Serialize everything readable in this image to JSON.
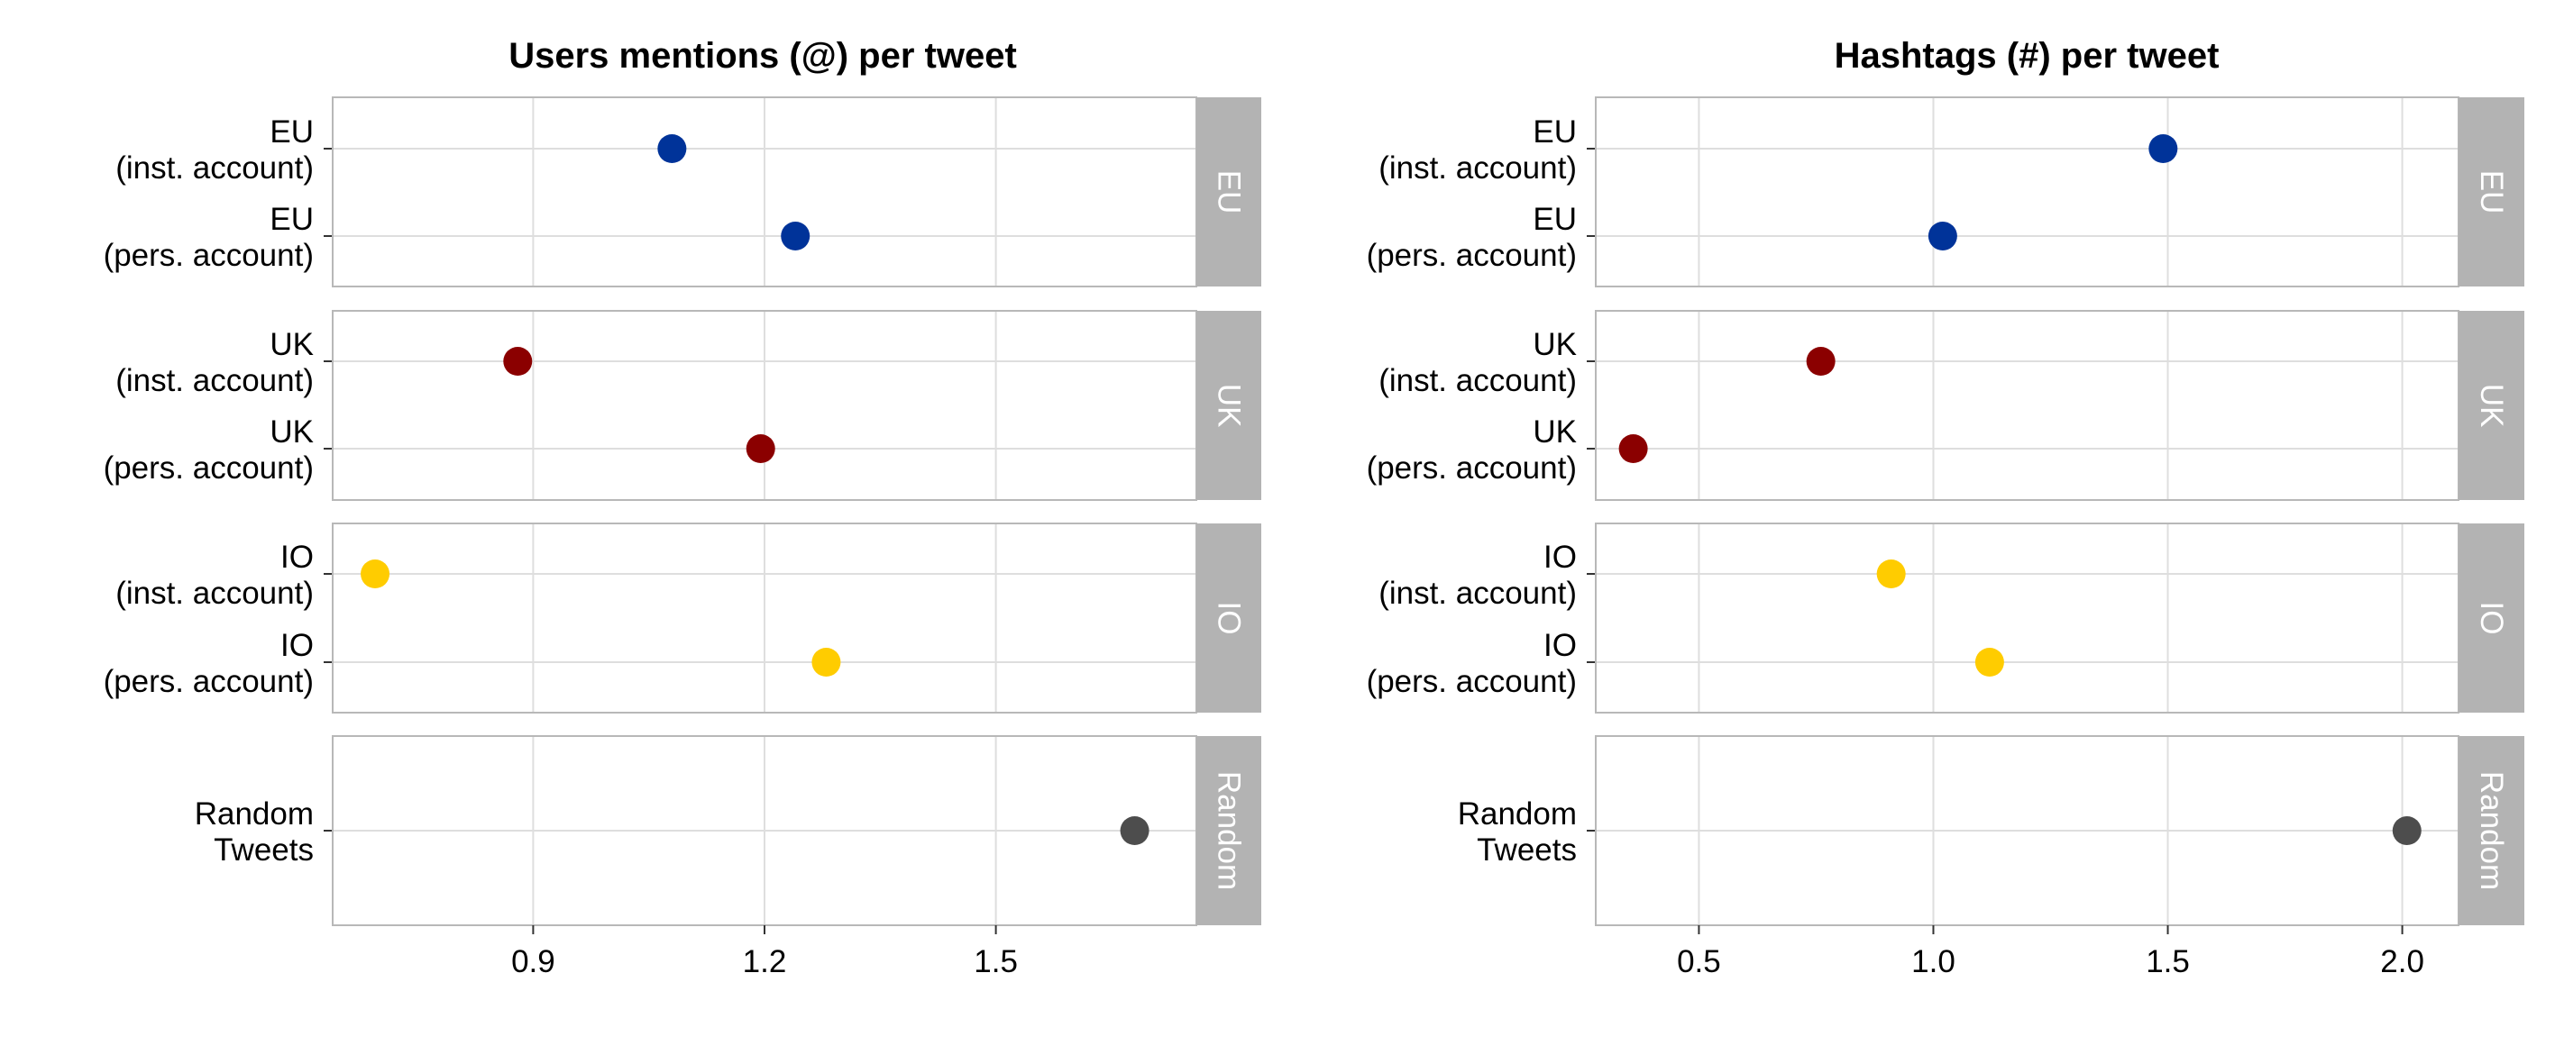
{
  "chart_data": [
    {
      "type": "scatter",
      "title": "Users mentions (@) per tweet",
      "xlim": [
        0.64,
        1.76
      ],
      "xticks": [
        0.9,
        1.2,
        1.5
      ],
      "xtick_labels": [
        "0.9",
        "1.2",
        "1.5"
      ],
      "grid": true,
      "facets": [
        {
          "strip": "EU",
          "rows": [
            {
              "label": [
                "EU",
                "(inst. account)"
              ],
              "value": 1.08,
              "color": "#003399"
            },
            {
              "label": [
                "EU",
                "(pers. account)"
              ],
              "value": 1.24,
              "color": "#003399"
            }
          ]
        },
        {
          "strip": "UK",
          "rows": [
            {
              "label": [
                "UK",
                "(inst. account)"
              ],
              "value": 0.88,
              "color": "#8B0000"
            },
            {
              "label": [
                "UK",
                "(pers. account)"
              ],
              "value": 1.195,
              "color": "#8B0000"
            }
          ]
        },
        {
          "strip": "IO",
          "rows": [
            {
              "label": [
                "IO",
                "(inst. account)"
              ],
              "value": 0.695,
              "color": "#FFCC00"
            },
            {
              "label": [
                "IO",
                "(pers. account)"
              ],
              "value": 1.28,
              "color": "#FFCC00"
            }
          ]
        },
        {
          "strip": "Random",
          "rows": [
            {
              "label": [
                "Random",
                "Tweets"
              ],
              "value": 1.68,
              "color": "#4D4D4D"
            }
          ]
        }
      ]
    },
    {
      "type": "scatter",
      "title": "Hashtags (#) per tweet",
      "xlim": [
        0.28,
        2.12
      ],
      "xticks": [
        0.5,
        1.0,
        1.5,
        2.0
      ],
      "xtick_labels": [
        "0.5",
        "1.0",
        "1.5",
        "2.0"
      ],
      "grid": true,
      "facets": [
        {
          "strip": "EU",
          "rows": [
            {
              "label": [
                "EU",
                "(inst. account)"
              ],
              "value": 1.49,
              "color": "#003399"
            },
            {
              "label": [
                "EU",
                "(pers. account)"
              ],
              "value": 1.02,
              "color": "#003399"
            }
          ]
        },
        {
          "strip": "UK",
          "rows": [
            {
              "label": [
                "UK",
                "(inst. account)"
              ],
              "value": 0.76,
              "color": "#8B0000"
            },
            {
              "label": [
                "UK",
                "(pers. account)"
              ],
              "value": 0.36,
              "color": "#8B0000"
            }
          ]
        },
        {
          "strip": "IO",
          "rows": [
            {
              "label": [
                "IO",
                "(inst. account)"
              ],
              "value": 0.91,
              "color": "#FFCC00"
            },
            {
              "label": [
                "IO",
                "(pers. account)"
              ],
              "value": 1.12,
              "color": "#FFCC00"
            }
          ]
        },
        {
          "strip": "Random",
          "rows": [
            {
              "label": [
                "Random",
                "Tweets"
              ],
              "value": 2.01,
              "color": "#4D4D4D"
            }
          ]
        }
      ]
    }
  ],
  "colors": {
    "strip_fill": "#B3B3B3",
    "strip_text": "#FFFFFF",
    "grid": "#DEDEDE",
    "panel_border": "#B8B8B8",
    "axis_text": "#000000"
  }
}
